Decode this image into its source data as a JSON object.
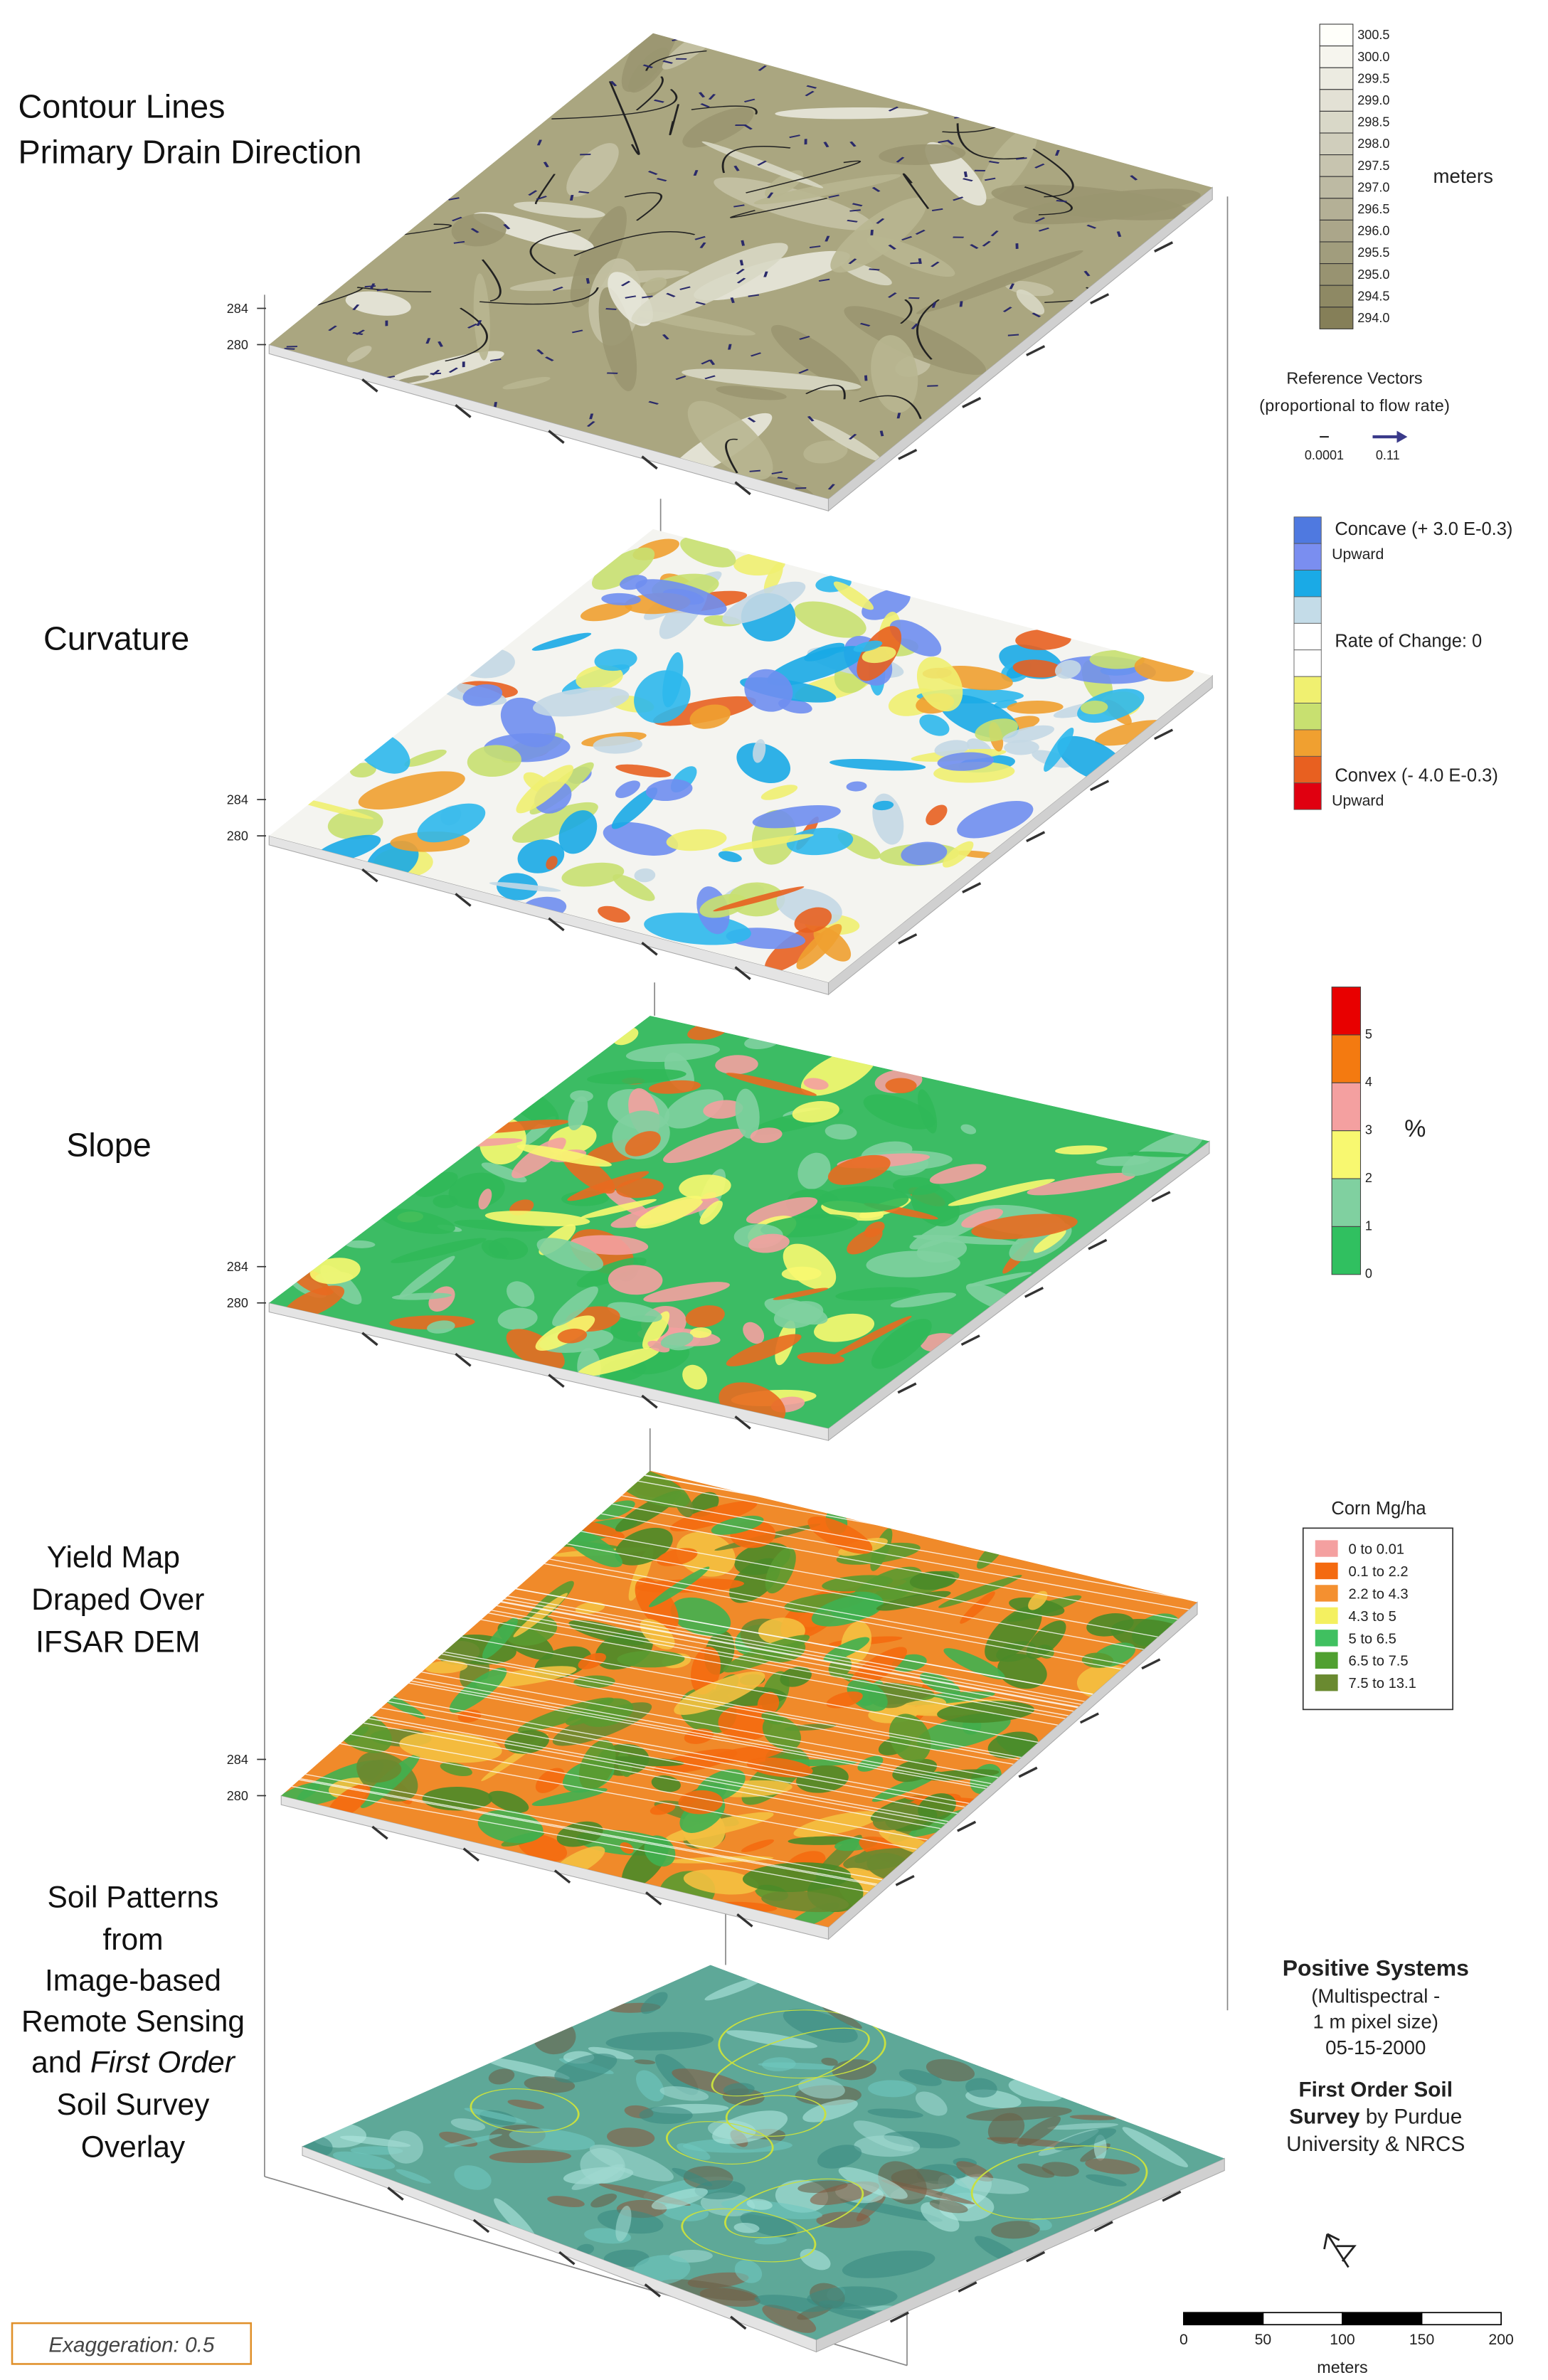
{
  "panels": [
    {
      "label": [
        "Contour Lines",
        "Primary Drain Direction"
      ],
      "z_labels": [
        "284",
        "280"
      ]
    },
    {
      "label": [
        "Curvature"
      ],
      "z_labels": [
        "284",
        "280"
      ]
    },
    {
      "label": [
        "Slope"
      ],
      "z_labels": [
        "284",
        "280"
      ]
    },
    {
      "label": [
        "Yield Map",
        "Draped Over",
        "IFSAR DEM"
      ],
      "z_labels": [
        "284",
        "280"
      ]
    },
    {
      "label": [
        "Soil Patterns",
        "from",
        "Image-based",
        "Remote Sensing",
        [
          "and ",
          "First Order"
        ],
        "Soil Survey",
        "Overlay"
      ]
    }
  ],
  "elevation_legend": {
    "levels": [
      "300.5",
      "300.0",
      "299.5",
      "299.0",
      "298.5",
      "298.0",
      "297.5",
      "297.0",
      "296.5",
      "296.0",
      "295.5",
      "295.0",
      "294.5",
      "294.0"
    ],
    "unit": "meters"
  },
  "reference_vectors": {
    "title": "Reference Vectors",
    "subtitle": "(proportional to flow rate)",
    "min": "0.0001",
    "max": "0.11"
  },
  "curvature_legend": {
    "top": "Concave (+ 3.0 E-0.3)",
    "top_sub": "Upward",
    "middle": "Rate of Change: 0",
    "bottom": "Convex (- 4.0 E-0.3)",
    "bottom_sub": "Upward"
  },
  "slope_legend": {
    "ticks": [
      "5",
      "4",
      "3",
      "2",
      "1",
      "0"
    ],
    "unit": "%"
  },
  "yield_legend": {
    "title": "Corn Mg/ha",
    "classes": [
      "0 to 0.01",
      "0.1 to 2.2",
      "2.2 to 4.3",
      "4.3 to 5",
      "5 to 6.5",
      "6.5 to 7.5",
      "7.5 to 13.1"
    ]
  },
  "source": {
    "name": "Positive Systems",
    "details": [
      "(Multispectral -",
      "1 m pixel size)",
      "05-15-2000"
    ],
    "survey_bold": [
      "First Order Soil",
      "Survey"
    ],
    "survey_rest": " by Purdue",
    "survey_last": "University & NRCS"
  },
  "scale_bar": {
    "ticks": [
      "0",
      "50",
      "100",
      "150",
      "200"
    ],
    "unit": "meters"
  },
  "exaggeration": "Exaggeration: 0.5"
}
